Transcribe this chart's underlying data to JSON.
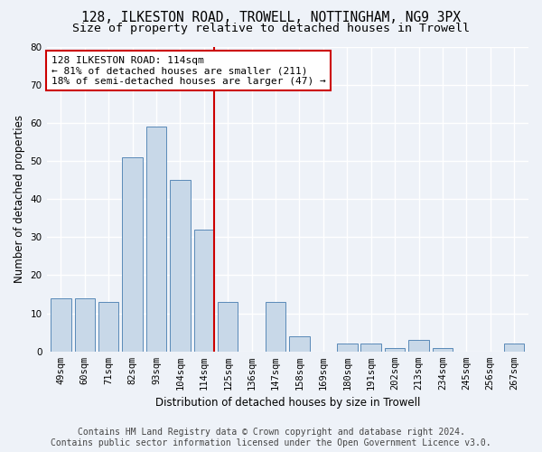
{
  "title": "128, ILKESTON ROAD, TROWELL, NOTTINGHAM, NG9 3PX",
  "subtitle": "Size of property relative to detached houses in Trowell",
  "xlabel": "Distribution of detached houses by size in Trowell",
  "ylabel": "Number of detached properties",
  "categories": [
    "49sqm",
    "60sqm",
    "71sqm",
    "82sqm",
    "93sqm",
    "104sqm",
    "114sqm",
    "125sqm",
    "136sqm",
    "147sqm",
    "158sqm",
    "169sqm",
    "180sqm",
    "191sqm",
    "202sqm",
    "213sqm",
    "234sqm",
    "245sqm",
    "256sqm",
    "267sqm"
  ],
  "values": [
    14,
    14,
    13,
    51,
    59,
    45,
    32,
    13,
    0,
    13,
    4,
    0,
    2,
    2,
    1,
    3,
    1,
    0,
    0,
    2
  ],
  "bar_color": "#c8d8e8",
  "bar_edge_color": "#5a8ab8",
  "marker_index": 6,
  "marker_color": "#cc0000",
  "annotation_line1": "128 ILKESTON ROAD: 114sqm",
  "annotation_line2": "← 81% of detached houses are smaller (211)",
  "annotation_line3": "18% of semi-detached houses are larger (47) →",
  "annotation_box_color": "#ffffff",
  "annotation_box_edge_color": "#cc0000",
  "ylim": [
    0,
    80
  ],
  "yticks": [
    0,
    10,
    20,
    30,
    40,
    50,
    60,
    70,
    80
  ],
  "footer_line1": "Contains HM Land Registry data © Crown copyright and database right 2024.",
  "footer_line2": "Contains public sector information licensed under the Open Government Licence v3.0.",
  "bg_color": "#eef2f8",
  "grid_color": "#ffffff",
  "title_fontsize": 10.5,
  "subtitle_fontsize": 9.5,
  "axis_label_fontsize": 8.5,
  "tick_fontsize": 7.5,
  "annotation_fontsize": 8,
  "footer_fontsize": 7
}
